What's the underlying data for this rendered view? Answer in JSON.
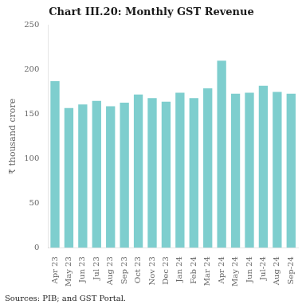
{
  "chart_data": {
    "type": "bar",
    "title": "Chart III.20: Monthly GST Revenue",
    "ylabel": "₹ thousand crore",
    "categories": [
      "Apr 23",
      "May 23",
      "Jun 23",
      "Jul 23",
      "Aug 23",
      "Sep 23",
      "Oct 23",
      "Nov 23",
      "Dec 23",
      "Jan 24",
      "Feb 24",
      "Mar 24",
      "Apr 24",
      "May 24",
      "Jun 24",
      "Jul-24",
      "Aug 24",
      "Sep-24"
    ],
    "values": [
      187,
      157,
      161,
      165,
      159,
      163,
      172,
      168,
      164,
      174,
      168,
      179,
      210,
      173,
      174,
      182,
      175,
      173
    ],
    "color": "#7ecece",
    "ylim": [
      0,
      250
    ],
    "yticks": [
      0,
      50,
      100,
      150,
      200,
      250
    ],
    "grid": false,
    "annotations": [
      "Sources: PIB; and GST Portal."
    ]
  }
}
